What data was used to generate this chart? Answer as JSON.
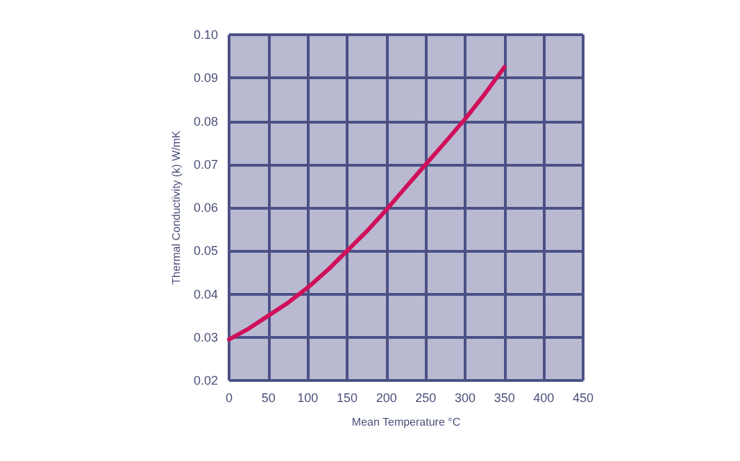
{
  "chart_data": {
    "type": "line",
    "xlabel": "Mean Temperature °C",
    "ylabel": "Thermal Conductivity (k) W/mK",
    "x": [
      0,
      25,
      50,
      75,
      100,
      125,
      150,
      175,
      200,
      225,
      250,
      275,
      300,
      325,
      350
    ],
    "series": [
      {
        "color": "#d0105a",
        "values": [
          0.0295,
          0.032,
          0.035,
          0.038,
          0.0415,
          0.0455,
          0.05,
          0.0545,
          0.0595,
          0.0648,
          0.07,
          0.0752,
          0.0805,
          0.0863,
          0.0925
        ]
      }
    ],
    "xlim": [
      0,
      450
    ],
    "xticks": [
      0,
      50,
      100,
      150,
      200,
      250,
      300,
      350,
      400,
      450
    ],
    "ylim": [
      0.02,
      0.1
    ],
    "yticks": [
      {
        "value": 0.02,
        "label": "0.02"
      },
      {
        "value": 0.03,
        "label": "0.03"
      },
      {
        "value": 0.04,
        "label": "0.04"
      },
      {
        "value": 0.05,
        "label": "0.05"
      },
      {
        "value": 0.06,
        "label": "0.06"
      },
      {
        "value": 0.07,
        "label": "0.07"
      },
      {
        "value": 0.08,
        "label": "0.08"
      },
      {
        "value": 0.09,
        "label": "0.09"
      },
      {
        "value": 0.1,
        "label": "0.10"
      }
    ],
    "grid": true,
    "marker": "none",
    "line_style": "solid"
  }
}
